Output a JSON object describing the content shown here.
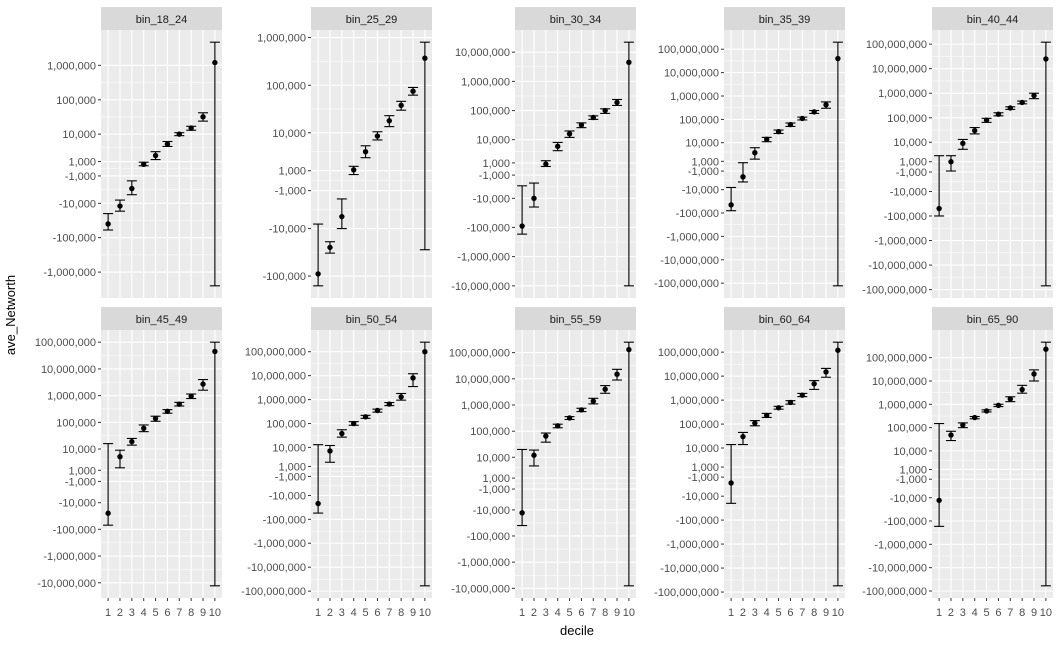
{
  "chart_data": {
    "type": "scatter",
    "subtype": "faceted point with error bars",
    "xlabel": "decile",
    "ylabel": "ave_Networth",
    "y_scale": "signed pseudo-log",
    "grid": true,
    "x_categories": [
      "1",
      "2",
      "3",
      "4",
      "5",
      "6",
      "7",
      "8",
      "9",
      "10"
    ],
    "panels": [
      {
        "title": "bin_18_24",
        "breaks": [
          -1000000,
          -100000,
          -10000,
          -1000,
          1000,
          10000,
          100000,
          1000000
        ],
        "mean": [
          -40000,
          -12000,
          -3500,
          600,
          2000,
          5000,
          10000,
          15000,
          32000,
          1200000
        ],
        "lower": [
          -60000,
          -17000,
          -5500,
          400,
          1300,
          4200,
          9000,
          13000,
          24000,
          -2500000
        ],
        "upper": [
          -20000,
          -8000,
          -1800,
          900,
          2800,
          6000,
          11000,
          17000,
          42000,
          4700000
        ]
      },
      {
        "title": "bin_25_29",
        "breaks": [
          -100000,
          -10000,
          -1000,
          1000,
          10000,
          100000,
          1000000
        ],
        "mean": [
          -90000,
          -25000,
          -5500,
          1100,
          3800,
          8500,
          18000,
          38000,
          75000,
          370000
        ],
        "lower": [
          -160000,
          -33000,
          -10000,
          600,
          2700,
          7000,
          13500,
          30000,
          62000,
          -28000
        ],
        "upper": [
          -8000,
          -19000,
          -2000,
          1500,
          5200,
          10500,
          23000,
          46000,
          90000,
          800000
        ]
      },
      {
        "title": "bin_30_34",
        "breaks": [
          -10000000,
          -1000000,
          -100000,
          -10000,
          -1000,
          1000,
          10000,
          100000,
          1000000,
          10000000
        ],
        "mean": [
          -90000,
          -10000,
          800,
          5800,
          16000,
          32000,
          58000,
          100000,
          190000,
          4500000
        ],
        "lower": [
          -170000,
          -20000,
          400,
          4000,
          12000,
          26000,
          50000,
          80000,
          150000,
          -10000000
        ],
        "upper": [
          -3500,
          -2700,
          1400,
          8000,
          20000,
          38000,
          66000,
          115000,
          240000,
          22000000
        ]
      },
      {
        "title": "bin_35_39",
        "breaks": [
          -100000000,
          -10000000,
          -1000000,
          -100000,
          -10000,
          -1000,
          1000,
          10000,
          100000,
          1000000,
          10000000,
          100000000
        ],
        "mean": [
          -45000,
          -2500,
          3500,
          14000,
          30000,
          60000,
          110000,
          210000,
          420000,
          40000000
        ],
        "lower": [
          -80000,
          -4500,
          1500,
          11000,
          25000,
          50000,
          95000,
          180000,
          300000,
          -130000000
        ],
        "upper": [
          -8000,
          700,
          6000,
          17000,
          35000,
          70000,
          125000,
          240000,
          560000,
          200000000
        ]
      },
      {
        "title": "bin_40_44",
        "breaks": [
          -100000000,
          -10000000,
          -1000000,
          -100000,
          -10000,
          -1000,
          1000,
          10000,
          100000,
          1000000,
          10000000,
          100000000
        ],
        "mean": [
          -50000,
          1000,
          9000,
          30000,
          80000,
          140000,
          250000,
          420000,
          800000,
          25000000
        ],
        "lower": [
          -100000,
          -800,
          5000,
          22000,
          65000,
          120000,
          220000,
          370000,
          600000,
          -70000000
        ],
        "upper": [
          2500,
          2500,
          13000,
          40000,
          95000,
          160000,
          280000,
          480000,
          1000000,
          120000000
        ]
      },
      {
        "title": "bin_45_49",
        "breaks": [
          -10000000,
          -1000000,
          -100000,
          -10000,
          -1000,
          1000,
          10000,
          100000,
          1000000,
          10000000,
          100000000
        ],
        "mean": [
          -25000,
          5000,
          19000,
          60000,
          140000,
          260000,
          480000,
          950000,
          2700000,
          45000000
        ],
        "lower": [
          -70000,
          1500,
          14000,
          45000,
          110000,
          220000,
          410000,
          780000,
          1600000,
          -13000000
        ],
        "upper": [
          16000,
          9000,
          25000,
          80000,
          170000,
          300000,
          560000,
          1150000,
          4000000,
          100000000
        ]
      },
      {
        "title": "bin_50_54",
        "breaks": [
          -100000000,
          -10000000,
          -1000000,
          -100000,
          -10000,
          -1000,
          1000,
          10000,
          100000,
          1000000,
          10000000,
          100000000
        ],
        "mean": [
          -22000,
          7000,
          38000,
          100000,
          190000,
          350000,
          650000,
          1300000,
          8000000,
          100000000
        ],
        "lower": [
          -55000,
          2000,
          27000,
          85000,
          165000,
          300000,
          560000,
          950000,
          3500000,
          -60000000
        ],
        "upper": [
          13000,
          12000,
          55000,
          120000,
          220000,
          400000,
          750000,
          1800000,
          12000000,
          250000000
        ]
      },
      {
        "title": "bin_55_59",
        "breaks": [
          -10000000,
          -1000000,
          -100000,
          -10000,
          -1000,
          1000,
          10000,
          100000,
          1000000,
          10000000,
          100000000
        ],
        "mean": [
          -13000,
          12000,
          65000,
          160000,
          320000,
          650000,
          1400000,
          4000000,
          15000000,
          130000000
        ],
        "lower": [
          -40000,
          4500,
          38000,
          135000,
          280000,
          560000,
          1100000,
          2800000,
          9000000,
          -8000000
        ],
        "upper": [
          20000,
          19000,
          85000,
          185000,
          360000,
          750000,
          1800000,
          5500000,
          23000000,
          250000000
        ]
      },
      {
        "title": "bin_60_64",
        "breaks": [
          -100000000,
          -10000000,
          -1000000,
          -100000,
          -10000,
          -1000,
          1000,
          10000,
          100000,
          1000000,
          10000000,
          100000000
        ],
        "mean": [
          -2500,
          30000,
          110000,
          230000,
          480000,
          800000,
          1600000,
          4800000,
          15000000,
          120000000
        ],
        "lower": [
          -20000,
          14000,
          85000,
          190000,
          420000,
          680000,
          1400000,
          2800000,
          9000000,
          -55000000
        ],
        "upper": [
          14000,
          45000,
          140000,
          280000,
          550000,
          950000,
          1900000,
          6500000,
          21000000,
          260000000
        ]
      },
      {
        "title": "bin_65_90",
        "breaks": [
          -100000000,
          -10000000,
          -1000000,
          -100000,
          -10000,
          -1000,
          1000,
          10000,
          100000,
          1000000,
          10000000,
          100000000
        ],
        "mean": [
          -13000,
          48000,
          130000,
          270000,
          520000,
          900000,
          1700000,
          4300000,
          20000000,
          230000000
        ],
        "lower": [
          -170000,
          28000,
          100000,
          240000,
          470000,
          800000,
          1300000,
          3000000,
          10000000,
          -60000000
        ],
        "upper": [
          150000,
          70000,
          160000,
          300000,
          580000,
          1000000,
          2100000,
          6500000,
          30000000,
          460000000
        ]
      }
    ]
  }
}
